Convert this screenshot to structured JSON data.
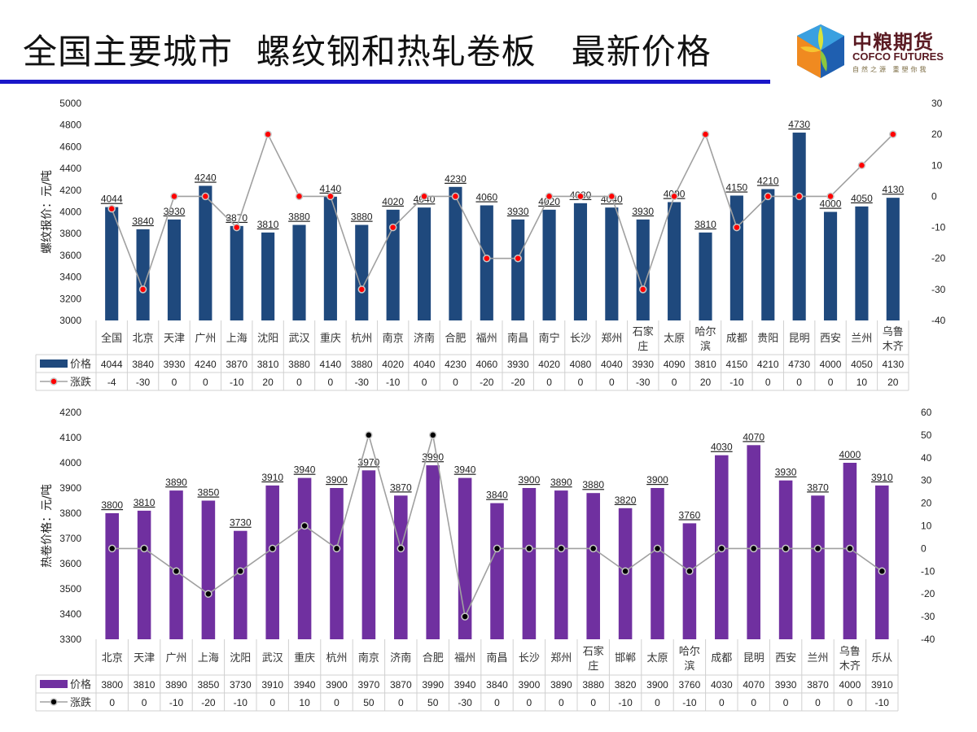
{
  "header": {
    "title": "全国主要城市  螺纹钢和热轧卷板   最新价格",
    "logo_cn": "中粮期货",
    "logo_en": "COFCO FUTURES",
    "logo_slogan": "自然之源 重塑你我"
  },
  "colors": {
    "title_bar": "#1a17c9",
    "rebar_bar": "#1f497d",
    "hrc_bar": "#7030a0",
    "line": "#a0a0a0",
    "rebar_marker": "#ff0000",
    "hrc_marker": "#000000"
  },
  "chart_data": [
    {
      "type": "bar",
      "title": "螺纹钢",
      "ylabel": "螺纹报价：元/吨",
      "y2label": "",
      "ylim": [
        3000,
        5000
      ],
      "yticks": [
        3000,
        3200,
        3400,
        3600,
        3800,
        4000,
        4200,
        4400,
        4600,
        4800,
        5000
      ],
      "y2lim": [
        -40,
        30
      ],
      "y2ticks": [
        -40,
        -30,
        -20,
        -10,
        0,
        10,
        20,
        30
      ],
      "categories": [
        "全国",
        "北京",
        "天津",
        "广州",
        "上海",
        "沈阳",
        "武汉",
        "重庆",
        "杭州",
        "南京",
        "济南",
        "合肥",
        "福州",
        "南昌",
        "南宁",
        "长沙",
        "郑州",
        "石家庄",
        "太原",
        "哈尔滨",
        "成都",
        "贵阳",
        "昆明",
        "西安",
        "兰州",
        "乌鲁木齐"
      ],
      "category_lines": [
        [
          "全国"
        ],
        [
          "北京"
        ],
        [
          "天津"
        ],
        [
          "广州"
        ],
        [
          "上海"
        ],
        [
          "沈阳"
        ],
        [
          "武汉"
        ],
        [
          "重庆"
        ],
        [
          "杭州"
        ],
        [
          "南京"
        ],
        [
          "济南"
        ],
        [
          "合肥"
        ],
        [
          "福州"
        ],
        [
          "南昌"
        ],
        [
          "南宁"
        ],
        [
          "长沙"
        ],
        [
          "郑州"
        ],
        [
          "石家",
          "庄"
        ],
        [
          "太原"
        ],
        [
          "哈尔",
          "滨"
        ],
        [
          "成都"
        ],
        [
          "贵阳"
        ],
        [
          "昆明"
        ],
        [
          "西安"
        ],
        [
          "兰州"
        ],
        [
          "乌鲁",
          "木齐"
        ]
      ],
      "series": [
        {
          "name": "价格",
          "type": "bar",
          "axis": "left",
          "values": [
            4044,
            3840,
            3930,
            4240,
            3870,
            3810,
            3880,
            4140,
            3880,
            4020,
            4040,
            4230,
            4060,
            3930,
            4020,
            4080,
            4040,
            3930,
            4090,
            3810,
            4150,
            4210,
            4730,
            4000,
            4050,
            4130
          ]
        },
        {
          "name": "涨跌",
          "type": "line",
          "axis": "right",
          "values": [
            -4,
            -30,
            0,
            0,
            -10,
            20,
            0,
            0,
            -30,
            -10,
            0,
            0,
            -20,
            -20,
            0,
            0,
            0,
            -30,
            0,
            20,
            -10,
            0,
            0,
            0,
            10,
            20
          ]
        }
      ],
      "legend": "table-left"
    },
    {
      "type": "bar",
      "title": "热轧卷板",
      "ylabel": "热卷价格：元/吨",
      "ylim": [
        3300,
        4200
      ],
      "yticks": [
        3300,
        3400,
        3500,
        3600,
        3700,
        3800,
        3900,
        4000,
        4100,
        4200
      ],
      "y2lim": [
        -40,
        60
      ],
      "y2ticks": [
        -40,
        -30,
        -20,
        -10,
        0,
        10,
        20,
        30,
        40,
        50,
        60
      ],
      "categories": [
        "北京",
        "天津",
        "广州",
        "上海",
        "沈阳",
        "武汉",
        "重庆",
        "杭州",
        "南京",
        "济南",
        "合肥",
        "福州",
        "南昌",
        "长沙",
        "郑州",
        "石家庄",
        "邯郸",
        "太原",
        "哈尔滨",
        "成都",
        "昆明",
        "西安",
        "兰州",
        "乌鲁木齐",
        "乐从"
      ],
      "category_lines": [
        [
          "北京"
        ],
        [
          "天津"
        ],
        [
          "广州"
        ],
        [
          "上海"
        ],
        [
          "沈阳"
        ],
        [
          "武汉"
        ],
        [
          "重庆"
        ],
        [
          "杭州"
        ],
        [
          "南京"
        ],
        [
          "济南"
        ],
        [
          "合肥"
        ],
        [
          "福州"
        ],
        [
          "南昌"
        ],
        [
          "长沙"
        ],
        [
          "郑州"
        ],
        [
          "石家",
          "庄"
        ],
        [
          "邯郸"
        ],
        [
          "太原"
        ],
        [
          "哈尔",
          "滨"
        ],
        [
          "成都"
        ],
        [
          "昆明"
        ],
        [
          "西安"
        ],
        [
          "兰州"
        ],
        [
          "乌鲁",
          "木齐"
        ],
        [
          "乐从"
        ]
      ],
      "series": [
        {
          "name": "价格",
          "type": "bar",
          "axis": "left",
          "values": [
            3800,
            3810,
            3890,
            3850,
            3730,
            3910,
            3940,
            3900,
            3970,
            3870,
            3990,
            3940,
            3840,
            3900,
            3890,
            3880,
            3820,
            3900,
            3760,
            4030,
            4070,
            3930,
            3870,
            4000,
            3910
          ]
        },
        {
          "name": "涨跌",
          "type": "line",
          "axis": "right",
          "values": [
            0,
            0,
            -10,
            -20,
            -10,
            0,
            10,
            0,
            50,
            0,
            50,
            -30,
            0,
            0,
            0,
            0,
            -10,
            0,
            -10,
            0,
            0,
            0,
            0,
            0,
            -10
          ]
        }
      ],
      "legend": "table-left"
    }
  ]
}
